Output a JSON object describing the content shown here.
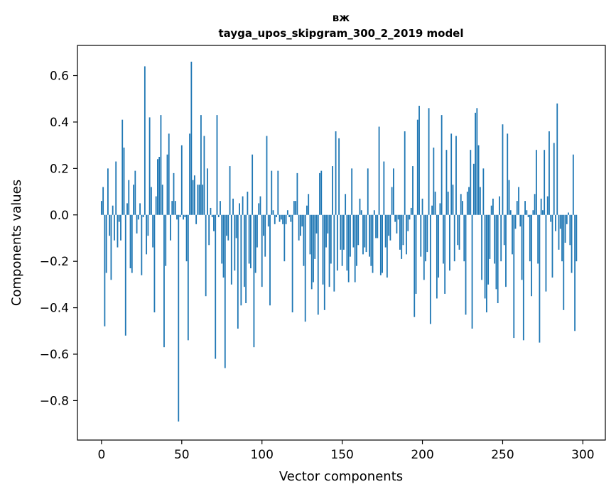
{
  "chart_data": {
    "type": "bar",
    "title": "вж",
    "subtitle": "tayga_upos_skipgram_300_2_2019 model",
    "xlabel": "Vector components",
    "ylabel": "Components values",
    "xlim": [
      -15,
      314
    ],
    "ylim": [
      -0.97,
      0.73
    ],
    "x_ticks": [
      0,
      50,
      100,
      150,
      200,
      250,
      300
    ],
    "x_tick_labels": [
      "0",
      "50",
      "100",
      "150",
      "200",
      "250",
      "300"
    ],
    "y_ticks": [
      -0.8,
      -0.6,
      -0.4,
      -0.2,
      0.0,
      0.2,
      0.4,
      0.6
    ],
    "y_tick_labels": [
      "−0.8",
      "−0.6",
      "−0.4",
      "−0.2",
      "0.0",
      "0.2",
      "0.4",
      "0.6"
    ],
    "bar_color": "#1f77b4",
    "grid": false,
    "series": [
      {
        "name": "вж",
        "values": [
          0.06,
          0.12,
          -0.48,
          -0.25,
          0.2,
          -0.09,
          -0.28,
          0.04,
          -0.11,
          0.23,
          -0.14,
          -0.03,
          -0.11,
          0.41,
          0.29,
          -0.52,
          0.05,
          0.15,
          -0.23,
          -0.25,
          0.13,
          0.19,
          -0.08,
          -0.02,
          0.05,
          -0.26,
          -0.01,
          0.64,
          -0.17,
          -0.09,
          0.42,
          0.12,
          -0.14,
          -0.42,
          0.08,
          0.24,
          0.25,
          0.43,
          0.13,
          -0.57,
          -0.22,
          0.26,
          0.35,
          -0.11,
          0.06,
          0.18,
          0.06,
          -0.02,
          -0.89,
          -0.01,
          0.3,
          -0.02,
          -0.01,
          -0.2,
          -0.54,
          0.35,
          0.66,
          0.15,
          0.17,
          -0.04,
          0.13,
          0.13,
          0.43,
          0.13,
          0.34,
          -0.35,
          0.2,
          -0.13,
          0.03,
          -0.01,
          -0.07,
          -0.62,
          0.43,
          -0.01,
          0.06,
          -0.21,
          -0.27,
          -0.66,
          -0.09,
          -0.11,
          0.21,
          -0.3,
          0.07,
          -0.24,
          -0.1,
          -0.49,
          0.05,
          -0.39,
          0.08,
          -0.31,
          -0.38,
          0.1,
          -0.21,
          -0.23,
          0.26,
          -0.57,
          -0.25,
          -0.14,
          0.05,
          0.08,
          -0.31,
          -0.09,
          -0.18,
          0.34,
          -0.05,
          -0.39,
          0.19,
          0.02,
          -0.04,
          -0.01,
          0.19,
          -0.03,
          -0.02,
          -0.04,
          -0.2,
          -0.04,
          0.02,
          -0.01,
          -0.03,
          -0.42,
          0.06,
          0.06,
          0.18,
          -0.11,
          -0.09,
          -0.05,
          -0.22,
          -0.46,
          0.04,
          0.09,
          -0.17,
          -0.32,
          -0.29,
          -0.19,
          -0.08,
          -0.43,
          0.18,
          0.19,
          -0.3,
          -0.41,
          -0.14,
          -0.08,
          -0.31,
          -0.21,
          0.21,
          -0.33,
          0.36,
          -0.24,
          0.33,
          -0.15,
          -0.22,
          -0.15,
          0.09,
          -0.24,
          -0.29,
          -0.18,
          0.2,
          -0.14,
          -0.29,
          -0.22,
          -0.13,
          0.07,
          0.02,
          -0.17,
          -0.14,
          -0.16,
          0.2,
          -0.18,
          -0.22,
          -0.25,
          0.02,
          -0.1,
          -0.1,
          0.38,
          -0.26,
          -0.25,
          0.23,
          -0.14,
          -0.27,
          -0.09,
          -0.11,
          0.12,
          0.2,
          -0.03,
          -0.08,
          -0.02,
          -0.15,
          -0.19,
          -0.13,
          0.36,
          -0.17,
          -0.07,
          -0.02,
          0.03,
          0.21,
          -0.44,
          -0.34,
          0.41,
          0.47,
          -0.18,
          0.07,
          -0.28,
          -0.2,
          -0.16,
          0.46,
          -0.47,
          0.04,
          0.29,
          0.1,
          -0.36,
          -0.27,
          0.05,
          0.43,
          -0.21,
          -0.34,
          0.28,
          0.1,
          -0.24,
          0.35,
          0.13,
          -0.2,
          0.34,
          -0.13,
          -0.15,
          0.09,
          0.06,
          -0.2,
          -0.43,
          0.1,
          0.12,
          0.28,
          -0.49,
          0.22,
          0.44,
          0.46,
          0.3,
          0.12,
          -0.28,
          0.2,
          -0.36,
          -0.42,
          -0.3,
          -0.19,
          0.04,
          0.07,
          -0.21,
          -0.32,
          -0.38,
          0.08,
          -0.2,
          0.39,
          -0.13,
          -0.31,
          0.35,
          0.15,
          0.02,
          -0.17,
          -0.53,
          -0.06,
          0.06,
          0.12,
          -0.05,
          -0.28,
          -0.54,
          0.06,
          0.02,
          -0.01,
          -0.2,
          -0.35,
          0.02,
          0.09,
          0.28,
          -0.21,
          -0.55,
          0.07,
          0.02,
          0.28,
          -0.33,
          0.08,
          0.36,
          -0.03,
          -0.27,
          0.31,
          -0.07,
          0.48,
          -0.15,
          -0.06,
          -0.2,
          -0.41,
          -0.12,
          -0.04,
          0.01,
          -0.13,
          -0.25,
          0.26,
          -0.5,
          -0.2
        ]
      }
    ]
  }
}
